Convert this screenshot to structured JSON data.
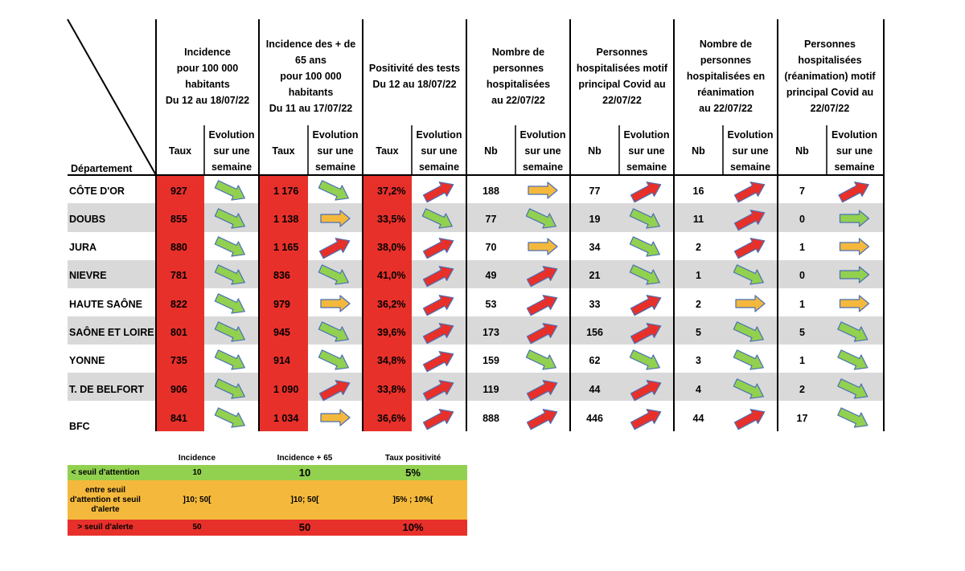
{
  "colors": {
    "red": "#e8302a",
    "grey": "#d9d9d9",
    "arrow_green": "#92d050",
    "arrow_yellow": "#f4b93c",
    "arrow_red": "#e8302a",
    "arrow_outline": "#4a6fb5"
  },
  "table": {
    "corner_label": "Département",
    "groups": [
      {
        "lines": [
          "Incidence",
          "pour 100 000",
          "habitants",
          "Du 12 au 18/07/22"
        ]
      },
      {
        "lines": [
          "Incidence des + de",
          "65 ans",
          "pour 100 000",
          "habitants",
          "Du 11 au 17/07/22"
        ]
      },
      {
        "lines": [
          "Positivité des tests",
          "Du 12 au 18/07/22"
        ]
      },
      {
        "lines": [
          "Nombre de",
          "personnes",
          "hospitalisées",
          "au 22/07/22"
        ]
      },
      {
        "lines": [
          "Personnes",
          "hospitalisées motif",
          "principal Covid au",
          "22/07/22"
        ]
      },
      {
        "lines": [
          "Nombre de",
          "personnes",
          "hospitalisées en",
          "réanimation",
          "au 22/07/22"
        ]
      },
      {
        "lines": [
          "Personnes",
          "hospitalisées",
          "(réanimation) motif",
          "principal Covid au",
          "22/07/22"
        ]
      }
    ],
    "sub_headers": [
      "Taux",
      "Taux",
      "Taux",
      "Nb",
      "Nb",
      "Nb",
      "Nb"
    ],
    "evolution_label": [
      "Evolution",
      "sur une",
      "semaine"
    ],
    "rows": [
      {
        "dept": "CÔTE D'OR",
        "values": [
          "927",
          "1 176",
          "37,2%",
          "188",
          "77",
          "16",
          "7"
        ],
        "evolution": [
          "down-green",
          "down-green",
          "up-red",
          "right-yellow",
          "up-red",
          "up-red",
          "up-red"
        ]
      },
      {
        "dept": "DOUBS",
        "values": [
          "855",
          "1 138",
          "33,5%",
          "77",
          "19",
          "11",
          "0"
        ],
        "evolution": [
          "down-green",
          "right-yellow",
          "down-green",
          "down-green",
          "down-green",
          "up-red",
          "right-green"
        ]
      },
      {
        "dept": "JURA",
        "values": [
          "880",
          "1 165",
          "38,0%",
          "70",
          "34",
          "2",
          "1"
        ],
        "evolution": [
          "down-green",
          "up-red",
          "up-red",
          "right-yellow",
          "down-green",
          "up-red",
          "right-yellow"
        ]
      },
      {
        "dept": "NIEVRE",
        "values": [
          "781",
          "836",
          "41,0%",
          "49",
          "21",
          "1",
          "0"
        ],
        "evolution": [
          "down-green",
          "down-green",
          "up-red",
          "up-red",
          "down-green",
          "down-green",
          "right-green"
        ]
      },
      {
        "dept": "HAUTE SAÔNE",
        "values": [
          "822",
          "979",
          "36,2%",
          "53",
          "33",
          "2",
          "1"
        ],
        "evolution": [
          "down-green",
          "right-yellow",
          "up-red",
          "up-red",
          "up-red",
          "right-yellow",
          "right-yellow"
        ]
      },
      {
        "dept": "SAÔNE ET LOIRE",
        "values": [
          "801",
          "945",
          "39,6%",
          "173",
          "156",
          "5",
          "5"
        ],
        "evolution": [
          "down-green",
          "down-green",
          "up-red",
          "up-red",
          "up-red",
          "down-green",
          "down-green"
        ]
      },
      {
        "dept": "YONNE",
        "values": [
          "735",
          "914",
          "34,8%",
          "159",
          "62",
          "3",
          "1"
        ],
        "evolution": [
          "down-green",
          "down-green",
          "up-red",
          "down-green",
          "down-green",
          "down-green",
          "down-green"
        ]
      },
      {
        "dept": "T. DE BELFORT",
        "values": [
          "906",
          "1 090",
          "33,8%",
          "119",
          "44",
          "4",
          "2"
        ],
        "evolution": [
          "down-green",
          "up-red",
          "up-red",
          "up-red",
          "up-red",
          "down-green",
          "down-green"
        ]
      },
      {
        "dept": "BFC",
        "values": [
          "841",
          "1 034",
          "36,6%",
          "888",
          "446",
          "44",
          "17"
        ],
        "evolution": [
          "down-green",
          "right-yellow",
          "up-red",
          "up-red",
          "up-red",
          "up-red",
          "down-green"
        ]
      }
    ]
  },
  "legend": {
    "headers": [
      "",
      "Incidence",
      "Incidence + 65",
      "Taux positivité"
    ],
    "rows": [
      {
        "label": "< seuil d'attention",
        "values": [
          "10",
          "10",
          "5%"
        ]
      },
      {
        "label": "entre seuil d'attention et seuil d'alerte",
        "values": [
          "]10; 50[",
          "]10; 50[",
          "]5% ; 10%["
        ]
      },
      {
        "label": "> seuil d'alerte",
        "values": [
          "50",
          "50",
          "10%"
        ]
      }
    ]
  }
}
